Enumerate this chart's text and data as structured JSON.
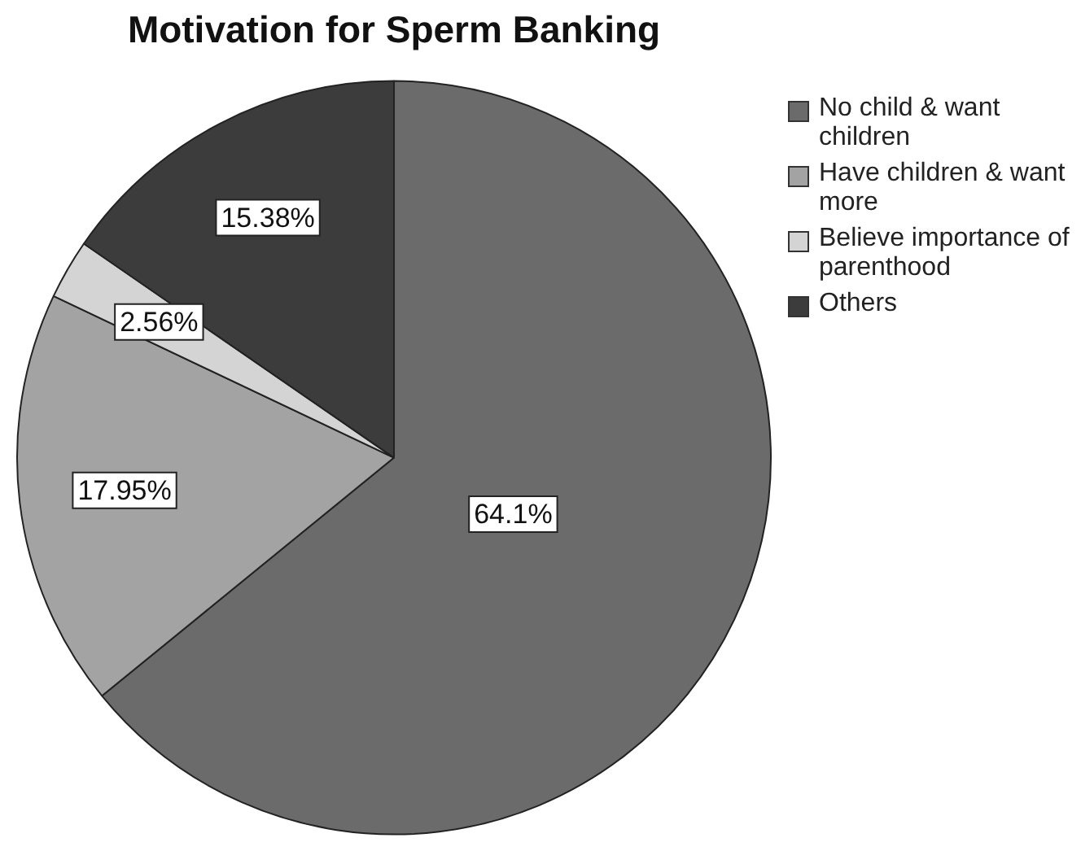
{
  "chart_data": {
    "type": "pie",
    "title": "Motivation for Sperm Banking",
    "categories": [
      "No child & want children",
      "Have children & want more",
      "Believe importance of parenthood",
      "Others"
    ],
    "values": [
      64.1,
      17.95,
      2.56,
      15.38
    ],
    "colors": [
      "#6b6b6b",
      "#a3a3a3",
      "#d4d4d4",
      "#3c3c3c"
    ],
    "value_labels": [
      "64.1%",
      "17.95%",
      "2.56%",
      "15.38%"
    ],
    "legend": "top right"
  }
}
